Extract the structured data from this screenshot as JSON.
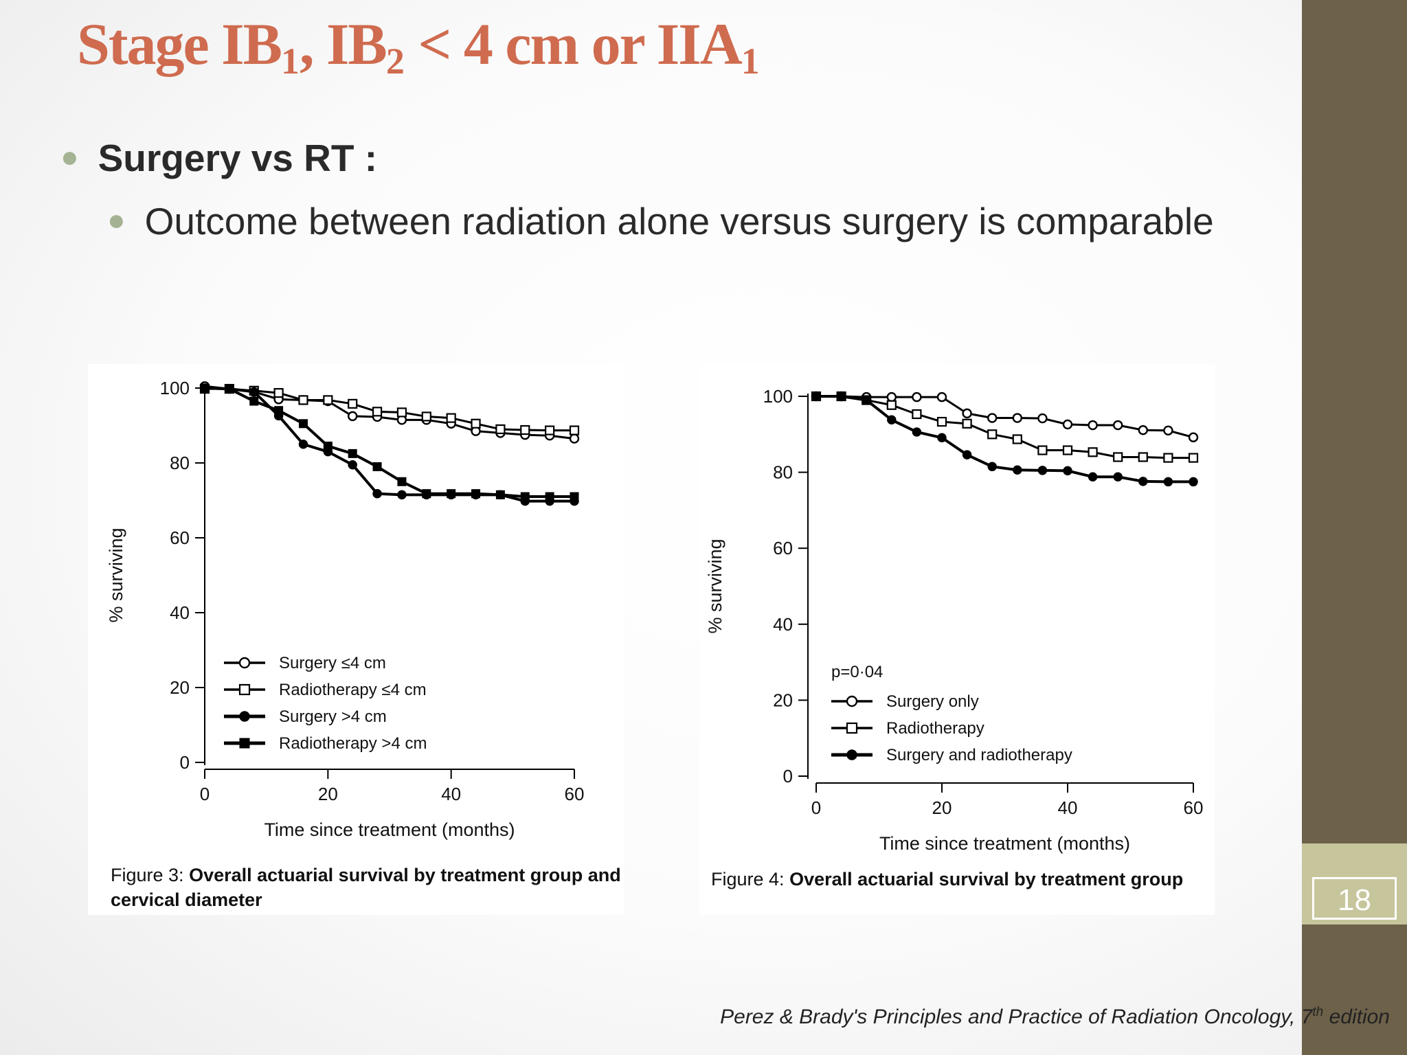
{
  "slide": {
    "title": {
      "main": "Stage IB",
      "sub1": "1",
      "sep": ", IB",
      "sub2": "2",
      "rest": " < 4 cm or IIA",
      "sub3": "1"
    },
    "bullet1": "Surgery vs RT :",
    "bullet2": "Outcome between radiation alone versus surgery is comparable",
    "page_number": "18",
    "citation": {
      "text": "Perez & Brady's Principles and Practice of Radiation Oncology, 7",
      "sup": "th",
      "tail": " edition"
    }
  },
  "chart_data": [
    {
      "type": "line",
      "ylabel": "% surviving",
      "xlabel": "Time since treatment (months)",
      "xlim": [
        0,
        60
      ],
      "ylim": [
        0,
        100
      ],
      "xticks": [
        0,
        20,
        40,
        60
      ],
      "yticks": [
        0,
        20,
        40,
        60,
        80,
        100
      ],
      "legend_position": "bottom-left",
      "caption": {
        "prefix": "Figure 3: ",
        "line1": "Overall actuarial survival by treatment group and",
        "line2": "cervical diameter"
      },
      "series": [
        {
          "name": "Surgery ≤4 cm",
          "marker": "open-circle",
          "x": [
            0,
            4,
            8,
            12,
            16,
            20,
            24,
            28,
            32,
            36,
            40,
            44,
            48,
            52,
            56,
            60
          ],
          "y": [
            100.5,
            99.8,
            99,
            97,
            96.8,
            96.5,
            92.5,
            92.3,
            91.5,
            91.5,
            90.5,
            88.5,
            88,
            87.5,
            87.3,
            86.5
          ]
        },
        {
          "name": "Radiotherapy ≤4 cm",
          "marker": "open-square",
          "x": [
            0,
            4,
            8,
            12,
            16,
            20,
            24,
            28,
            32,
            36,
            40,
            44,
            48,
            52,
            56,
            60
          ],
          "y": [
            99.8,
            99.8,
            99.3,
            98.7,
            96.8,
            96.8,
            95.8,
            93.7,
            93.5,
            92.4,
            92,
            90.5,
            89,
            88.8,
            88.7,
            88.7
          ]
        },
        {
          "name": "Surgery >4 cm",
          "marker": "filled-circle",
          "x": [
            0,
            4,
            8,
            12,
            16,
            20,
            24,
            28,
            32,
            36,
            40,
            44,
            48,
            52,
            56,
            60
          ],
          "y": [
            100,
            99.8,
            99,
            92.6,
            85,
            83,
            79.5,
            71.8,
            71.5,
            71.5,
            71.5,
            71.5,
            71.5,
            69.8,
            69.8,
            69.8
          ]
        },
        {
          "name": "Radiotherapy >4 cm",
          "marker": "filled-square",
          "x": [
            0,
            4,
            8,
            12,
            16,
            20,
            24,
            28,
            32,
            36,
            40,
            44,
            48,
            52,
            56,
            60
          ],
          "y": [
            100,
            99.8,
            96.5,
            94,
            90.5,
            84.5,
            82.5,
            79,
            75,
            71.8,
            71.8,
            71.8,
            71.5,
            71,
            71,
            71
          ]
        }
      ]
    },
    {
      "type": "line",
      "ylabel": "% surviving",
      "xlabel": "Time since treatment (months)",
      "xlim": [
        0,
        60
      ],
      "ylim": [
        0,
        100
      ],
      "xticks": [
        0,
        20,
        40,
        60
      ],
      "yticks": [
        0,
        20,
        40,
        60,
        80,
        100
      ],
      "legend_position": "bottom-left",
      "annotation": "p=0·04",
      "caption": {
        "prefix": "Figure 4: ",
        "line1": "Overall actuarial survival by treatment group",
        "line2": ""
      },
      "series": [
        {
          "name": "Surgery only",
          "marker": "open-circle",
          "x": [
            0,
            4,
            8,
            12,
            16,
            20,
            24,
            28,
            32,
            36,
            40,
            44,
            48,
            52,
            56,
            60
          ],
          "y": [
            100,
            100,
            99.8,
            99.8,
            99.8,
            99.8,
            95.5,
            94.3,
            94.3,
            94.2,
            92.6,
            92.4,
            92.4,
            91.1,
            91,
            89.2
          ]
        },
        {
          "name": "Radiotherapy",
          "marker": "open-square",
          "x": [
            0,
            4,
            8,
            12,
            16,
            20,
            24,
            28,
            32,
            36,
            40,
            44,
            48,
            52,
            56,
            60
          ],
          "y": [
            100,
            100,
            99,
            97.7,
            95.3,
            93.3,
            92.8,
            90,
            88.7,
            85.8,
            85.8,
            85.3,
            84,
            84,
            83.8,
            83.8
          ]
        },
        {
          "name": "Surgery and radiotherapy",
          "marker": "filled-circle",
          "x": [
            0,
            4,
            8,
            12,
            16,
            20,
            24,
            28,
            32,
            36,
            40,
            44,
            48,
            52,
            56,
            60
          ],
          "y": [
            100,
            100,
            99,
            93.8,
            90.6,
            89.1,
            84.6,
            81.5,
            80.6,
            80.5,
            80.4,
            78.8,
            78.8,
            77.6,
            77.5,
            77.5
          ]
        }
      ]
    }
  ]
}
